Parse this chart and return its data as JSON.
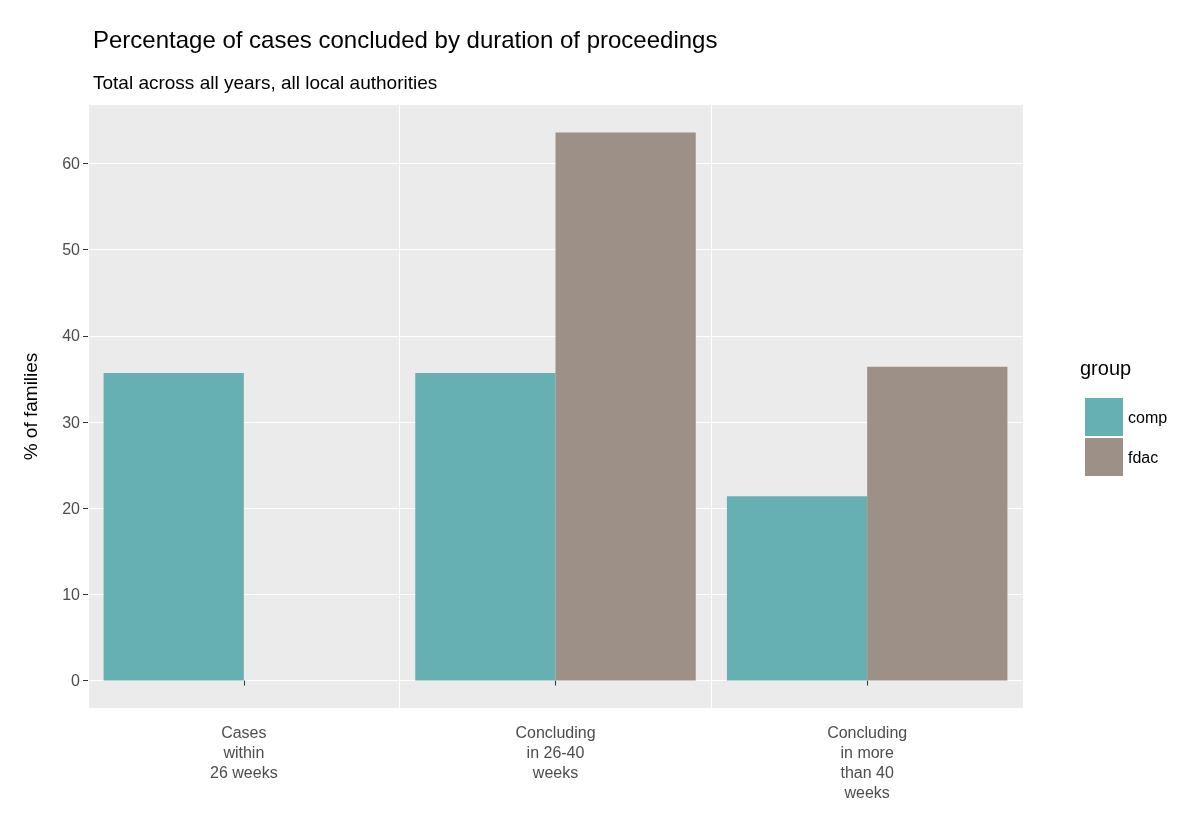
{
  "chart_data": {
    "type": "bar",
    "title": "Percentage of cases concluded by duration of proceedings",
    "subtitle": "Total across all years, all local authorities",
    "ylabel": "% of families",
    "legend_title": "group",
    "categories": [
      "Cases\nwithin\n26 weeks",
      "Concluding\nin 26-40\nweeks",
      "Concluding\nin more\nthan 40\nweeks"
    ],
    "series": [
      {
        "name": "comp",
        "color": "#66b0b4",
        "values": [
          35.7,
          35.7,
          21.4
        ]
      },
      {
        "name": "fdac",
        "color": "#9c9087",
        "values": [
          0,
          63.6,
          36.4
        ]
      }
    ],
    "ylim": [
      -3.18,
      66.78
    ],
    "yticks": [
      0,
      10,
      20,
      30,
      40,
      50,
      60
    ],
    "grid": true,
    "legend": "right"
  }
}
